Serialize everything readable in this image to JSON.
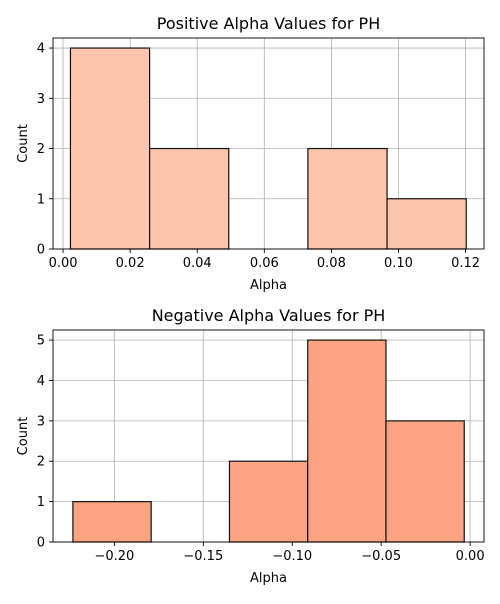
{
  "chart_data": [
    {
      "type": "bar",
      "title": "Positive Alpha Values for PH",
      "xlabel": "Alpha",
      "ylabel": "Count",
      "bin_edges": [
        0.0022,
        0.0258,
        0.0494,
        0.073,
        0.0966,
        0.1202
      ],
      "counts": [
        4,
        2,
        0,
        2,
        1
      ],
      "xlim": [
        -0.003,
        0.1255
      ],
      "ylim": [
        0,
        4.2
      ],
      "xticks": [
        0.0,
        0.02,
        0.04,
        0.06,
        0.08,
        0.1,
        0.12
      ],
      "xtick_labels": [
        "0.00",
        "0.02",
        "0.04",
        "0.06",
        "0.08",
        "0.10",
        "0.12"
      ],
      "yticks": [
        0,
        1,
        2,
        3,
        4
      ],
      "ytick_labels": [
        "0",
        "1",
        "2",
        "3",
        "4"
      ],
      "grid": true,
      "bar_color": "#fdc4ae",
      "edge_color": "#111111"
    },
    {
      "type": "bar",
      "title": "Negative Alpha Values for PH",
      "xlabel": "Alpha",
      "ylabel": "Count",
      "bin_edges": [
        -0.2233,
        -0.1793,
        -0.1353,
        -0.0913,
        -0.0473,
        -0.0033
      ],
      "counts": [
        1,
        0,
        2,
        5,
        3
      ],
      "xlim": [
        -0.2345,
        0.0078
      ],
      "ylim": [
        0,
        5.25
      ],
      "xticks": [
        -0.2,
        -0.15,
        -0.1,
        -0.05,
        0.0
      ],
      "xtick_labels": [
        "−0.20",
        "−0.15",
        "−0.10",
        "−0.05",
        "0.00"
      ],
      "yticks": [
        0,
        1,
        2,
        3,
        4,
        5
      ],
      "ytick_labels": [
        "0",
        "1",
        "2",
        "3",
        "4",
        "5"
      ],
      "grid": true,
      "bar_color": "#fca482",
      "edge_color": "#111111"
    }
  ]
}
